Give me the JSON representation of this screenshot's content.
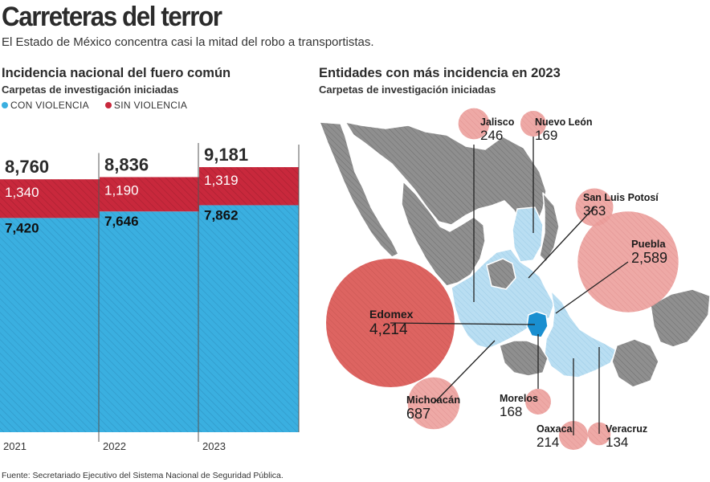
{
  "title": "Carreteras del terror",
  "subtitle": "El Estado de México concentra casi la mitad del robo a transportistas.",
  "left": {
    "title": "Incidencia nacional del fuero común",
    "subtitle": "Carpetas de investigación iniciadas",
    "legend": [
      {
        "label": "CON VIOLENCIA",
        "color": "#3aafe0"
      },
      {
        "label": "SIN VIOLENCIA",
        "color": "#c8283c"
      }
    ]
  },
  "right": {
    "title": "Entidades con más incidencia en 2023",
    "subtitle": "Carpetas de investigación iniciadas"
  },
  "source": "Fuente: Secretariado Ejecutivo del Sistema Nacional de Seguridad Pública.",
  "colors": {
    "con_violencia": "#3aafe0",
    "sin_violencia": "#c8283c",
    "map_gray": "#8f8f8f",
    "map_highlight": "#b9def2",
    "edomex": "#1a8fd0",
    "bubble_large": "#d9534f",
    "bubble_light": "#eb9a99"
  },
  "chart_data": [
    {
      "type": "bar",
      "stacked": true,
      "categories": [
        "2021",
        "2022",
        "2023"
      ],
      "series": [
        {
          "name": "CON VIOLENCIA",
          "values": [
            7420,
            7646,
            7862
          ],
          "labels": [
            "7,420",
            "7,646",
            "7,862"
          ]
        },
        {
          "name": "SIN VIOLENCIA",
          "values": [
            1340,
            1190,
            1319
          ],
          "labels": [
            "1,340",
            "1,190",
            "1,319"
          ]
        }
      ],
      "totals": [
        8760,
        8836,
        9181
      ],
      "total_labels": [
        "8,760",
        "8,836",
        "9,181"
      ]
    },
    {
      "type": "bubble-map",
      "entities": [
        {
          "name": "Edomex",
          "value": 4214,
          "label": "4,214"
        },
        {
          "name": "Puebla",
          "value": 2589,
          "label": "2,589"
        },
        {
          "name": "Michoacán",
          "value": 687,
          "label": "687"
        },
        {
          "name": "San Luis Potosí",
          "value": 363,
          "label": "363"
        },
        {
          "name": "Jalisco",
          "value": 246,
          "label": "246"
        },
        {
          "name": "Oaxaca",
          "value": 214,
          "label": "214"
        },
        {
          "name": "Nuevo León",
          "value": 169,
          "label": "169"
        },
        {
          "name": "Morelos",
          "value": 168,
          "label": "168"
        },
        {
          "name": "Veracruz",
          "value": 134,
          "label": "134"
        }
      ]
    }
  ]
}
